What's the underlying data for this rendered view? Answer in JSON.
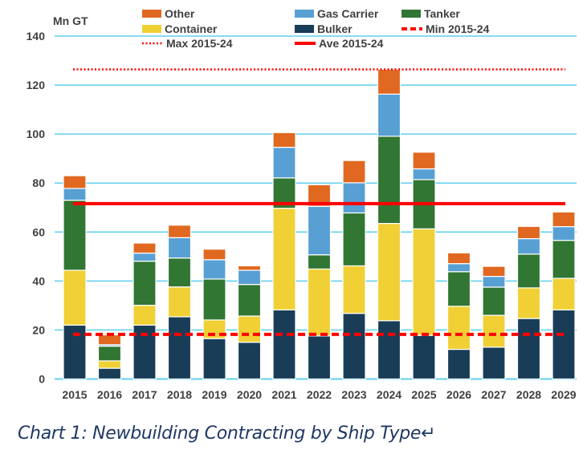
{
  "chart_data": {
    "type": "bar",
    "stacked": true,
    "ylabel": "Mn GT",
    "ylim": [
      0,
      140
    ],
    "yticks": [
      0,
      20,
      40,
      60,
      80,
      100,
      120,
      140
    ],
    "grid": true,
    "legend_placement": "top",
    "categories": [
      "2015",
      "2016",
      "2017",
      "2018",
      "2019",
      "2020",
      "2021",
      "2022",
      "2023",
      "2024",
      "2025",
      "2026",
      "2027",
      "2028",
      "2029"
    ],
    "series": [
      {
        "name": "Bulker",
        "color": "#193d57",
        "values": [
          22.0,
          4.4,
          22.0,
          25.4,
          16.5,
          15.0,
          28.2,
          17.6,
          26.8,
          23.8,
          17.8,
          12.1,
          13.0,
          24.7,
          28.2
        ]
      },
      {
        "name": "Container",
        "color": "#f0d034",
        "values": [
          22.4,
          3.0,
          8.1,
          12.2,
          7.6,
          10.7,
          41.5,
          27.3,
          19.4,
          39.7,
          43.5,
          17.6,
          13.0,
          12.5,
          12.9
        ]
      },
      {
        "name": "Tanker",
        "color": "#317633",
        "values": [
          28.6,
          6.0,
          18.0,
          11.8,
          16.7,
          12.9,
          12.4,
          5.8,
          21.6,
          35.6,
          20.1,
          14.1,
          11.5,
          13.8,
          15.5
        ]
      },
      {
        "name": "Gas Carrier",
        "color": "#58a0d4",
        "values": [
          4.8,
          0.6,
          3.3,
          8.3,
          7.9,
          5.8,
          12.5,
          19.8,
          12.3,
          17.2,
          4.4,
          3.3,
          4.4,
          6.3,
          5.6
        ]
      },
      {
        "name": "Other",
        "color": "#e06820",
        "values": [
          5.2,
          4.0,
          4.1,
          5.1,
          4.3,
          1.8,
          6.0,
          8.8,
          9.1,
          10.1,
          6.8,
          4.4,
          4.1,
          5.0,
          6.0
        ]
      }
    ],
    "reference_lines": [
      {
        "name": "Min 2015-24",
        "value": 18.2,
        "style": "dashed",
        "color": "#ff0000"
      },
      {
        "name": "Max 2015-24",
        "value": 126.4,
        "style": "dotted",
        "color": "#ff0000"
      },
      {
        "name": "Ave 2015-24",
        "value": 71.6,
        "style": "solid",
        "color": "#ff0000"
      }
    ],
    "legend_order": [
      "Other",
      "Gas Carrier",
      "Tanker",
      "Container",
      "Bulker",
      "Min 2015-24",
      "Max 2015-24",
      "Ave 2015-24"
    ],
    "gridline_color": "#5fcfef"
  },
  "caption": "Chart 1: Newbuilding Contracting by Ship Type↵"
}
